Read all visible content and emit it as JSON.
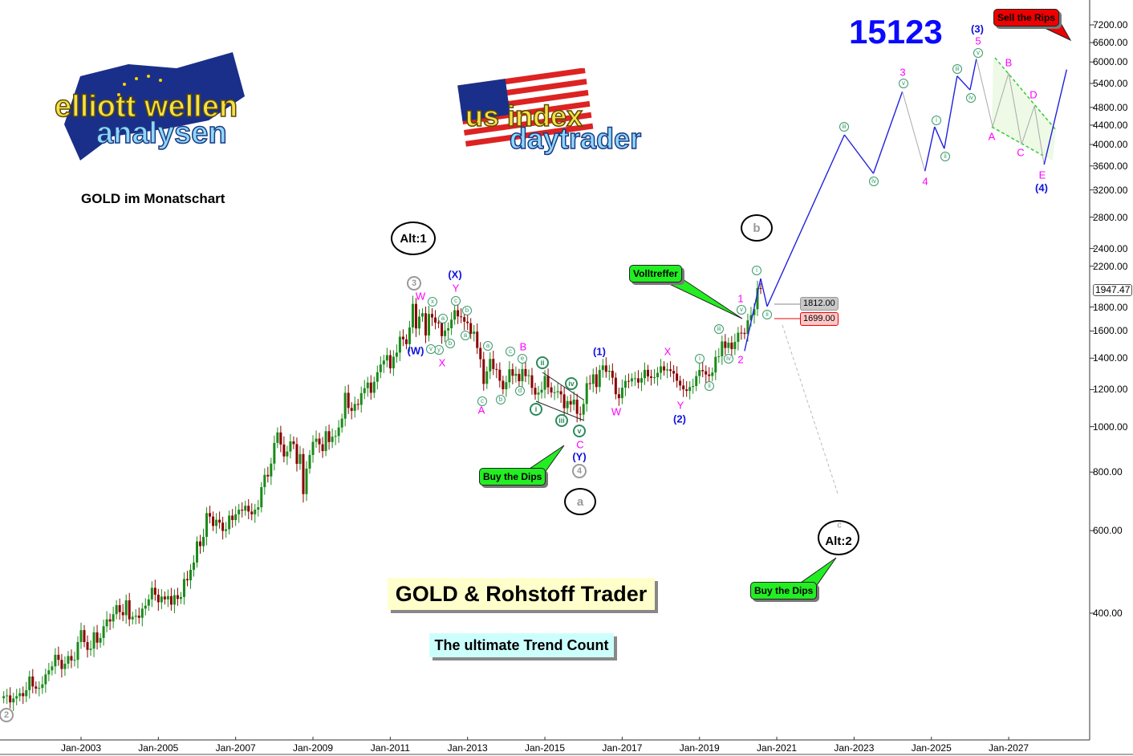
{
  "header": {
    "id_number": "15123",
    "subtitle": "GOLD im Monatschart",
    "logo_left": {
      "line1": "elliott wellen",
      "line2": "analysen"
    },
    "logo_center": {
      "line1": "us index",
      "line2": "daytrader"
    },
    "product_title": "GOLD & Rohstoff Trader",
    "product_tagline": "The ultimate Trend Count"
  },
  "callouts": {
    "volltreffer": "Volltreffer",
    "buy_dips_1": "Buy the Dips",
    "buy_dips_2": "Buy the Dips",
    "sell_rips": "Sell the Rips"
  },
  "price_levels": {
    "upper": "1812.00",
    "lower": "1699.00",
    "last": "1947.47"
  },
  "colors": {
    "up_candle": "#1a8a1a",
    "down_candle": "#8b0000",
    "impulse": "#2020e0",
    "corrective": "#aaaaaa",
    "channel": "#33cc33",
    "callout_green": "#22ee22",
    "callout_red": "#ee0000",
    "id_blue": "#0a0aff"
  },
  "wave_labels": [
    {
      "text": "2",
      "style": "gray-circle"
    },
    {
      "text": "3",
      "style": "gray-circle"
    },
    {
      "text": "4",
      "style": "gray-circle"
    },
    {
      "text": "Alt:1",
      "style": "oval"
    },
    {
      "text": "b",
      "style": "oval gray-text"
    },
    {
      "text": "a",
      "style": "oval gray-text"
    },
    {
      "text": "Alt:2",
      "style": "oval"
    },
    {
      "text": "c",
      "style": "magenta-gray"
    },
    {
      "text": "W",
      "style": "magenta"
    },
    {
      "text": "Y",
      "style": "magenta"
    },
    {
      "text": "X",
      "style": "magenta"
    },
    {
      "text": "A",
      "style": "magenta"
    },
    {
      "text": "B",
      "style": "magenta"
    },
    {
      "text": "C",
      "style": "magenta"
    },
    {
      "text": "W",
      "style": "magenta"
    },
    {
      "text": "X",
      "style": "magenta"
    },
    {
      "text": "Y",
      "style": "magenta"
    },
    {
      "text": "1",
      "style": "magenta"
    },
    {
      "text": "2",
      "style": "magenta"
    },
    {
      "text": "3",
      "style": "magenta"
    },
    {
      "text": "4",
      "style": "magenta"
    },
    {
      "text": "5",
      "style": "magenta"
    },
    {
      "text": "A",
      "style": "magenta"
    },
    {
      "text": "B",
      "style": "magenta"
    },
    {
      "text": "C",
      "style": "magenta"
    },
    {
      "text": "D",
      "style": "magenta"
    },
    {
      "text": "E",
      "style": "magenta"
    },
    {
      "text": "(X)",
      "style": "blue"
    },
    {
      "text": "(W)",
      "style": "blue"
    },
    {
      "text": "(Y)",
      "style": "blue"
    },
    {
      "text": "(1)",
      "style": "blue"
    },
    {
      "text": "(2)",
      "style": "blue"
    },
    {
      "text": "(3)",
      "style": "blue"
    },
    {
      "text": "(4)",
      "style": "blue"
    },
    {
      "text": "x",
      "style": "green-circle"
    },
    {
      "text": "a",
      "style": "green-circle"
    },
    {
      "text": "c",
      "style": "green-circle"
    },
    {
      "text": "b",
      "style": "green-circle"
    },
    {
      "text": "a",
      "style": "green-circle"
    },
    {
      "text": "y",
      "style": "green-circle"
    },
    {
      "text": "b",
      "style": "green-circle"
    },
    {
      "text": "v",
      "style": "green-circle"
    },
    {
      "text": "a",
      "style": "green-circle"
    },
    {
      "text": "c",
      "style": "green-circle"
    },
    {
      "text": "b",
      "style": "green-circle"
    },
    {
      "text": "c",
      "style": "green-circle"
    },
    {
      "text": "e",
      "style": "green-circle"
    },
    {
      "text": "d",
      "style": "green-circle"
    },
    {
      "text": "ii",
      "style": "green-big"
    },
    {
      "text": "i",
      "style": "green-big"
    },
    {
      "text": "iii",
      "style": "green-big"
    },
    {
      "text": "iv",
      "style": "green-big"
    },
    {
      "text": "v",
      "style": "green-big"
    },
    {
      "text": "i",
      "style": "green-circle"
    },
    {
      "text": "ii",
      "style": "green-circle"
    },
    {
      "text": "iii",
      "style": "green-circle"
    },
    {
      "text": "iv",
      "style": "green-circle"
    },
    {
      "text": "v",
      "style": "green-circle"
    },
    {
      "text": "i",
      "style": "green-circle"
    },
    {
      "text": "ii",
      "style": "green-circle"
    },
    {
      "text": "iii",
      "style": "green-circle"
    },
    {
      "text": "iv",
      "style": "green-circle"
    },
    {
      "text": "v",
      "style": "green-circle"
    },
    {
      "text": "i",
      "style": "green-circle"
    },
    {
      "text": "ii",
      "style": "green-circle"
    },
    {
      "text": "iii",
      "style": "green-circle"
    },
    {
      "text": "iv",
      "style": "green-circle"
    },
    {
      "text": "v",
      "style": "green-circle"
    }
  ],
  "chart_data": {
    "type": "candlestick",
    "title": "GOLD im Monatschart",
    "y_scale": "log",
    "ylim": [
      230,
      8000
    ],
    "y_ticks": [
      7200,
      6600,
      6000,
      5400,
      4800,
      4400,
      4000,
      3600,
      3200,
      2800,
      2400,
      2200,
      1800,
      1600,
      1400,
      1200,
      1000,
      800,
      600,
      400
    ],
    "x_ticks": [
      "Jan-2003",
      "Jan-2005",
      "Jan-2007",
      "Jan-2009",
      "Jan-2011",
      "Jan-2013",
      "Jan-2015",
      "Jan-2017",
      "Jan-2019",
      "Jan-2021",
      "Jan-2023",
      "Jan-2025",
      "Jan-2027"
    ],
    "grid": false,
    "candles": {
      "start": "2001-01",
      "interval": "monthly",
      "closes": [
        266,
        267,
        258,
        263,
        266,
        270,
        266,
        274,
        293,
        279,
        276,
        277,
        282,
        296,
        302,
        308,
        326,
        318,
        304,
        312,
        324,
        317,
        318,
        347,
        368,
        347,
        334,
        336,
        364,
        346,
        354,
        375,
        388,
        384,
        398,
        416,
        402,
        396,
        426,
        388,
        393,
        395,
        391,
        409,
        415,
        428,
        453,
        438,
        422,
        434,
        428,
        435,
        417,
        437,
        429,
        433,
        473,
        470,
        495,
        513,
        569,
        556,
        582,
        654,
        643,
        614,
        633,
        624,
        599,
        604,
        646,
        632,
        650,
        665,
        662,
        678,
        659,
        650,
        665,
        673,
        743,
        789,
        783,
        834,
        923,
        972,
        916,
        864,
        885,
        930,
        918,
        833,
        874,
        718,
        814,
        870,
        928,
        943,
        917,
        887,
        978,
        927,
        952,
        955,
        996,
        1040,
        1181,
        1096,
        1081,
        1118,
        1113,
        1179,
        1208,
        1242,
        1181,
        1247,
        1307,
        1357,
        1384,
        1421,
        1332,
        1410,
        1439,
        1556,
        1536,
        1500,
        1628,
        1828,
        1620,
        1717,
        1746,
        1565,
        1740,
        1710,
        1668,
        1664,
        1560,
        1604,
        1622,
        1692,
        1772,
        1719,
        1713,
        1675,
        1663,
        1578,
        1595,
        1472,
        1393,
        1234,
        1312,
        1395,
        1327,
        1323,
        1253,
        1202,
        1244,
        1326,
        1284,
        1296,
        1250,
        1327,
        1282,
        1287,
        1210,
        1171,
        1182,
        1199,
        1283,
        1213,
        1183,
        1184,
        1190,
        1172,
        1095,
        1134,
        1115,
        1142,
        1065,
        1061,
        1118,
        1238,
        1234,
        1293,
        1215,
        1321,
        1351,
        1309,
        1316,
        1272,
        1173,
        1150,
        1211,
        1252,
        1249,
        1268,
        1268,
        1242,
        1269,
        1322,
        1280,
        1271,
        1275,
        1303,
        1345,
        1318,
        1325,
        1315,
        1298,
        1253,
        1224,
        1201,
        1192,
        1215,
        1221,
        1282,
        1321,
        1313,
        1292,
        1283,
        1305,
        1409,
        1413,
        1520,
        1472,
        1511,
        1464,
        1517,
        1587,
        1585,
        1577,
        1686,
        1730,
        1781,
        1975,
        1968
      ]
    },
    "projection": [
      {
        "date": "2020-03",
        "price": 1450,
        "wave": "2"
      },
      {
        "date": "2020-08",
        "price": 2070,
        "wave": "i",
        "leg": "impulse"
      },
      {
        "date": "2020-10",
        "price": 1805,
        "wave": "ii",
        "leg": "impulse"
      },
      {
        "date": "2022-10",
        "price": 4195,
        "wave": "iii",
        "leg": "impulse"
      },
      {
        "date": "2023-07",
        "price": 3470,
        "wave": "iv",
        "leg": "impulse"
      },
      {
        "date": "2024-04",
        "price": 5190,
        "wave": "3",
        "leg": "impulse"
      },
      {
        "date": "2024-11",
        "price": 3510,
        "wave": "4",
        "leg": "corrective"
      },
      {
        "date": "2025-02",
        "price": 4365,
        "wave": "i",
        "leg": "impulse"
      },
      {
        "date": "2025-05",
        "price": 3920,
        "wave": "ii",
        "leg": "impulse"
      },
      {
        "date": "2025-09",
        "price": 5600,
        "wave": "iii",
        "leg": "impulse"
      },
      {
        "date": "2026-01",
        "price": 5230,
        "wave": "iv",
        "leg": "impulse"
      },
      {
        "date": "2026-03",
        "price": 6100,
        "wave": "5",
        "leg": "impulse"
      },
      {
        "date": "2026-08",
        "price": 4365,
        "wave": "A",
        "leg": "corrective"
      },
      {
        "date": "2027-01",
        "price": 5685,
        "wave": "B",
        "leg": "corrective"
      },
      {
        "date": "2027-05",
        "price": 4000,
        "wave": "C",
        "leg": "corrective"
      },
      {
        "date": "2027-09",
        "price": 4835,
        "wave": "D",
        "leg": "corrective"
      },
      {
        "date": "2027-12",
        "price": 3625,
        "wave": "E",
        "leg": "corrective"
      },
      {
        "date": "2028-07",
        "price": 5780,
        "wave": "",
        "leg": "impulse"
      }
    ],
    "alternate_path": [
      {
        "date": "2020-11",
        "price": 1700
      },
      {
        "date": "2022-08",
        "price": 650,
        "wave": "c / Alt:2"
      }
    ]
  }
}
